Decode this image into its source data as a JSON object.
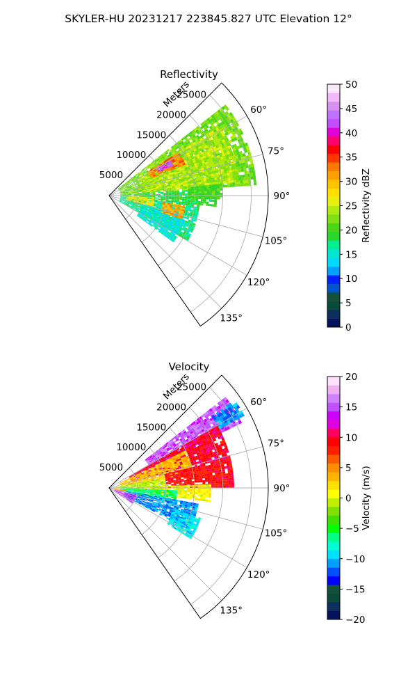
{
  "figure_title": "SKYLER-HU  20231217  223845.827 UTC Elevation 12°",
  "chart_data": [
    {
      "type": "heatmap",
      "subtype": "polar-sector",
      "title": "Reflectivity",
      "range_label": "Meters",
      "range_ticks": [
        5000,
        10000,
        15000,
        20000,
        25000
      ],
      "range_tick_labels": [
        "5000",
        "10000",
        "15000",
        "20000",
        "25000"
      ],
      "rmax": 28000,
      "azimuth_range_deg": [
        45,
        145
      ],
      "azimuth_ticks": [
        60,
        75,
        90,
        105,
        120,
        135
      ],
      "azimuth_tick_labels": [
        "60°",
        "75°",
        "90°",
        "105°",
        "120°",
        "135°"
      ],
      "grid": true,
      "colorbar": {
        "label": "Reflectivity dBZ",
        "vmin": 0,
        "vmax": 50,
        "ticks": [
          "0",
          "5",
          "10",
          "15",
          "20",
          "25",
          "30",
          "35",
          "40",
          "45",
          "50"
        ],
        "colors": [
          "#07135c",
          "#0c2f5e",
          "#0a4a3a",
          "#13513a",
          "#0055cc",
          "#0022ff",
          "#00a0ff",
          "#00d8ff",
          "#00e6d0",
          "#00ee90",
          "#2ad62a",
          "#4cd61a",
          "#7ee010",
          "#b0ea10",
          "#e8f010",
          "#ffe000",
          "#ffc400",
          "#ffa000",
          "#ff7800",
          "#ff3800",
          "#ff0000",
          "#ff0070",
          "#e000d8",
          "#c24cff",
          "#c070ff",
          "#d890f0",
          "#f0b8f8",
          "#fce8fc"
        ]
      },
      "regions": [
        {
          "az": [
            52,
            86
          ],
          "r": [
            2000,
            26000
          ],
          "value": 22
        },
        {
          "az": [
            58,
            84
          ],
          "r": [
            6000,
            23000
          ],
          "value": 24
        },
        {
          "az": [
            86,
            96
          ],
          "r": [
            2000,
            19000
          ],
          "value": 19
        },
        {
          "az": [
            96,
            120
          ],
          "r": [
            2000,
            16000
          ],
          "value": 17
        },
        {
          "az": [
            104,
            126
          ],
          "r": [
            6000,
            14000
          ],
          "value": 15
        },
        {
          "az": [
            58,
            68
          ],
          "r": [
            8000,
            14500
          ],
          "value": 33
        },
        {
          "az": [
            60,
            65
          ],
          "r": [
            9500,
            12500
          ],
          "value": 42
        },
        {
          "az": [
            97,
            108
          ],
          "r": [
            9500,
            13500
          ],
          "value": 31
        },
        {
          "az": [
            92,
            104
          ],
          "r": [
            3000,
            8000
          ],
          "value": 27
        },
        {
          "az": [
            84,
            92
          ],
          "r": [
            14000,
            20000
          ],
          "value": 20
        }
      ]
    },
    {
      "type": "heatmap",
      "subtype": "polar-sector",
      "title": "Velocity",
      "range_label": "Meters",
      "range_ticks": [
        5000,
        10000,
        15000,
        20000,
        25000
      ],
      "range_tick_labels": [
        "5000",
        "10000",
        "15000",
        "20000",
        "25000"
      ],
      "rmax": 28000,
      "azimuth_range_deg": [
        45,
        145
      ],
      "azimuth_ticks": [
        60,
        75,
        90,
        105,
        120,
        135
      ],
      "azimuth_tick_labels": [
        "60°",
        "75°",
        "90°",
        "105°",
        "120°",
        "135°"
      ],
      "grid": true,
      "colorbar": {
        "label": "Velocity (m/s)",
        "vmin": -20,
        "vmax": 20,
        "ticks": [
          "−20",
          "−15",
          "−10",
          "−5",
          "0",
          "5",
          "10",
          "15",
          "20"
        ],
        "colors": [
          "#07135c",
          "#0c2f5e",
          "#0a4a3a",
          "#13513a",
          "#0000ff",
          "#0050ff",
          "#00a0ff",
          "#00e0ff",
          "#00ffd0",
          "#00ff80",
          "#00ff00",
          "#40e000",
          "#80e000",
          "#c0f000",
          "#ffff00",
          "#ffe000",
          "#ffb400",
          "#ff8c00",
          "#ff5a00",
          "#ff2000",
          "#ff0000",
          "#ff0060",
          "#e000e0",
          "#d000ff",
          "#c050ff",
          "#d080ff",
          "#f0b0f0",
          "#fce0fc"
        ]
      },
      "regions": [
        {
          "az": [
            52,
            64
          ],
          "r": [
            8000,
            26000
          ],
          "value": 15
        },
        {
          "az": [
            60,
            76
          ],
          "r": [
            4000,
            22000
          ],
          "value": 10
        },
        {
          "az": [
            64,
            82
          ],
          "r": [
            2000,
            15000
          ],
          "value": 3
        },
        {
          "az": [
            76,
            90
          ],
          "r": [
            10000,
            22000
          ],
          "value": 9
        },
        {
          "az": [
            80,
            92
          ],
          "r": [
            1000,
            10000
          ],
          "value": -1
        },
        {
          "az": [
            88,
            98
          ],
          "r": [
            8000,
            18000
          ],
          "value": 1
        },
        {
          "az": [
            92,
            104
          ],
          "r": [
            2000,
            12000
          ],
          "value": -6
        },
        {
          "az": [
            100,
            118
          ],
          "r": [
            3000,
            16000
          ],
          "value": -11
        },
        {
          "az": [
            108,
            122
          ],
          "r": [
            12000,
            17000
          ],
          "value": -9
        },
        {
          "az": [
            104,
            124
          ],
          "r": [
            1000,
            5000
          ],
          "value": 14
        },
        {
          "az": [
            96,
            106
          ],
          "r": [
            0,
            3000
          ],
          "value": 4
        },
        {
          "az": [
            55,
            62
          ],
          "r": [
            22000,
            27000
          ],
          "value": -11
        }
      ]
    }
  ]
}
